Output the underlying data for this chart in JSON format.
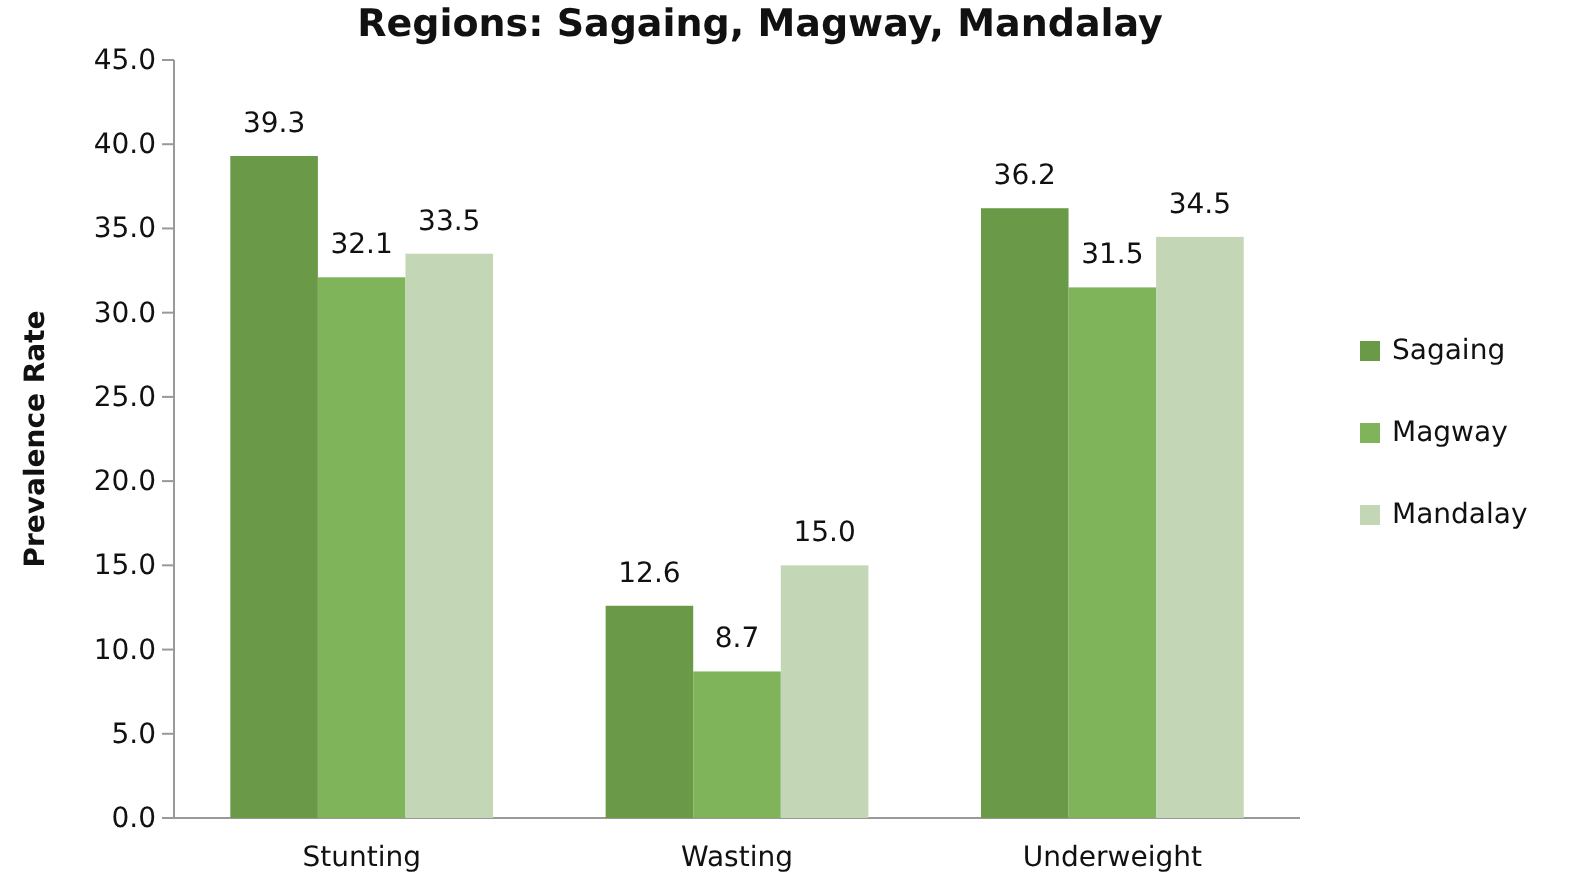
{
  "chart_data": {
    "type": "bar",
    "title": "Regions: Sagaing, Magway, Mandalay",
    "ylabel": "Prevalence Rate",
    "categories": [
      "Stunting",
      "Wasting",
      "Underweight"
    ],
    "series": [
      {
        "name": "Sagaing",
        "color": "#6a9a48",
        "values": [
          39.3,
          12.6,
          36.2
        ],
        "value_labels": [
          "39.3",
          "12.6",
          "36.2"
        ]
      },
      {
        "name": "Magway",
        "color": "#7fb45a",
        "values": [
          32.1,
          8.7,
          31.5
        ],
        "value_labels": [
          "32.1",
          "8.7",
          "31.5"
        ]
      },
      {
        "name": "Mandalay",
        "color": "#c3d6b5",
        "values": [
          33.5,
          15.0,
          34.5
        ],
        "value_labels": [
          "33.5",
          "15.0",
          "34.5"
        ]
      }
    ],
    "ylim": [
      0,
      45
    ],
    "yticks": [
      {
        "value": 0,
        "label": "0.0"
      },
      {
        "value": 5,
        "label": "5.0"
      },
      {
        "value": 10,
        "label": "10.0"
      },
      {
        "value": 15,
        "label": "15.0"
      },
      {
        "value": 20,
        "label": "20.0"
      },
      {
        "value": 25,
        "label": "25.0"
      },
      {
        "value": 30,
        "label": "30.0"
      },
      {
        "value": 35,
        "label": "35.0"
      },
      {
        "value": 40,
        "label": "40.0"
      },
      {
        "value": 45,
        "label": "45.0"
      }
    ],
    "legend": "right"
  }
}
